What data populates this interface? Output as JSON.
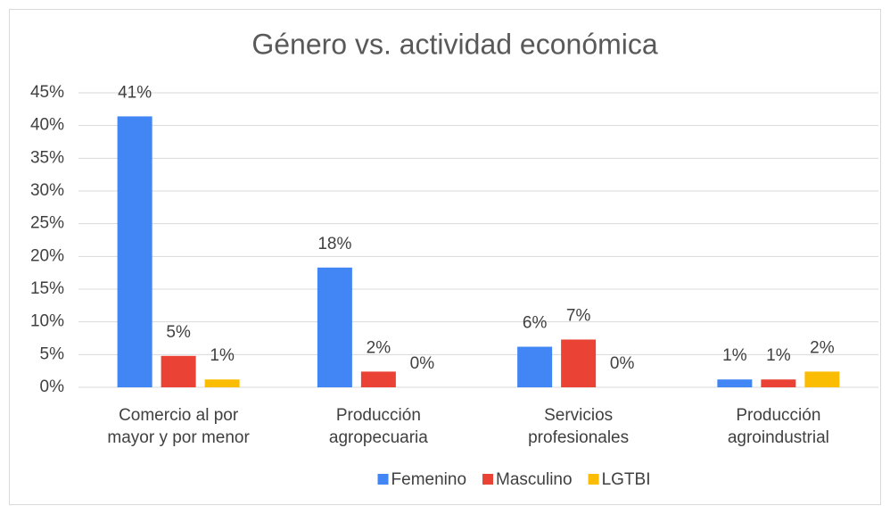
{
  "chart_data": {
    "type": "bar",
    "title": "Género vs. actividad económica",
    "categories": [
      [
        "Comercio al por",
        "mayor y por menor"
      ],
      [
        "Producción",
        "agropecuaria"
      ],
      [
        "Servicios",
        "profesionales"
      ],
      [
        "Producción",
        "agroindustrial"
      ]
    ],
    "series": [
      {
        "name": "Femenino",
        "color": "#4285f4",
        "values": [
          41.4,
          18.3,
          6.2,
          1.2
        ],
        "value_labels": [
          "41%",
          "18%",
          "6%",
          "1%"
        ]
      },
      {
        "name": "Masculino",
        "color": "#ea4335",
        "values": [
          4.8,
          2.4,
          7.3,
          1.2
        ],
        "value_labels": [
          "5%",
          "2%",
          "7%",
          "1%"
        ]
      },
      {
        "name": "LGTBI",
        "color": "#fbbc04",
        "values": [
          1.2,
          0,
          0,
          2.4
        ],
        "value_labels": [
          "1%",
          "0%",
          "0%",
          "2%"
        ]
      }
    ],
    "ylim": [
      0,
      45
    ],
    "yticks": [
      {
        "value": 0,
        "label": "0%"
      },
      {
        "value": 5,
        "label": "5%"
      },
      {
        "value": 10,
        "label": "10%"
      },
      {
        "value": 15,
        "label": "15%"
      },
      {
        "value": 20,
        "label": "20%"
      },
      {
        "value": 25,
        "label": "25%"
      },
      {
        "value": 30,
        "label": "30%"
      },
      {
        "value": 35,
        "label": "35%"
      },
      {
        "value": 40,
        "label": "40%"
      },
      {
        "value": 45,
        "label": "45%"
      }
    ],
    "grid": true,
    "legend": "bottom"
  }
}
